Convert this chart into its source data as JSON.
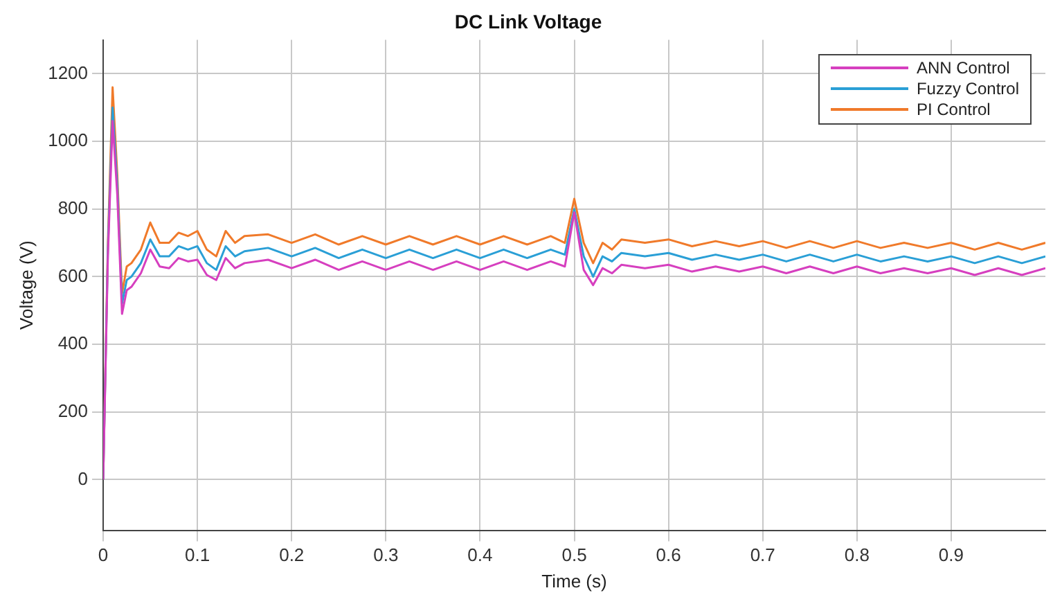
{
  "chart_data": {
    "type": "line",
    "title": "DC Link Voltage",
    "xlabel": "Time (s)",
    "ylabel": "Voltage (V)",
    "x": [
      0,
      0.005,
      0.01,
      0.015,
      0.02,
      0.025,
      0.03,
      0.04,
      0.05,
      0.06,
      0.07,
      0.08,
      0.09,
      0.1,
      0.11,
      0.12,
      0.13,
      0.14,
      0.15,
      0.175,
      0.2,
      0.225,
      0.25,
      0.275,
      0.3,
      0.325,
      0.35,
      0.375,
      0.4,
      0.425,
      0.45,
      0.475,
      0.49,
      0.5,
      0.51,
      0.52,
      0.53,
      0.54,
      0.55,
      0.575,
      0.6,
      0.625,
      0.65,
      0.675,
      0.7,
      0.725,
      0.75,
      0.775,
      0.8,
      0.825,
      0.85,
      0.875,
      0.9,
      0.925,
      0.95,
      0.975,
      1.0
    ],
    "series": [
      {
        "name": "ANN Control",
        "color": "#d63fbf",
        "values": [
          0,
          660,
          1060,
          840,
          490,
          560,
          570,
          610,
          680,
          630,
          625,
          655,
          645,
          650,
          605,
          590,
          655,
          625,
          640,
          650,
          625,
          650,
          620,
          645,
          620,
          645,
          620,
          645,
          620,
          645,
          620,
          645,
          630,
          790,
          620,
          575,
          625,
          610,
          635,
          625,
          635,
          615,
          630,
          615,
          630,
          610,
          630,
          610,
          630,
          610,
          625,
          610,
          625,
          605,
          625,
          605,
          625
        ]
      },
      {
        "name": "Fuzzy Control",
        "color": "#2a9fd6",
        "values": [
          0,
          680,
          1100,
          870,
          520,
          590,
          600,
          640,
          710,
          660,
          660,
          690,
          680,
          690,
          640,
          620,
          690,
          660,
          675,
          685,
          660,
          685,
          655,
          680,
          655,
          680,
          655,
          680,
          655,
          680,
          655,
          680,
          665,
          800,
          660,
          600,
          660,
          645,
          670,
          660,
          670,
          650,
          665,
          650,
          665,
          645,
          665,
          645,
          665,
          645,
          660,
          645,
          660,
          640,
          660,
          640,
          660
        ]
      },
      {
        "name": "PI Control",
        "color": "#f07a2a",
        "values": [
          0,
          700,
          1160,
          900,
          550,
          630,
          640,
          680,
          760,
          700,
          700,
          730,
          720,
          735,
          680,
          660,
          735,
          700,
          720,
          725,
          700,
          725,
          695,
          720,
          695,
          720,
          695,
          720,
          695,
          720,
          695,
          720,
          700,
          830,
          700,
          640,
          700,
          680,
          710,
          700,
          710,
          690,
          705,
          690,
          705,
          685,
          705,
          685,
          705,
          685,
          700,
          685,
          700,
          680,
          700,
          680,
          700
        ]
      }
    ],
    "xlim": [
      0,
      1
    ],
    "xticks": [
      0,
      0.1,
      0.2,
      0.3,
      0.4,
      0.5,
      0.6,
      0.7,
      0.8,
      0.9
    ],
    "ylim": [
      -150,
      1300
    ],
    "yticks": [
      0,
      200,
      400,
      600,
      800,
      1000,
      1200
    ],
    "grid": true,
    "legend": "top right",
    "marker": "none",
    "line_style": "solid"
  }
}
